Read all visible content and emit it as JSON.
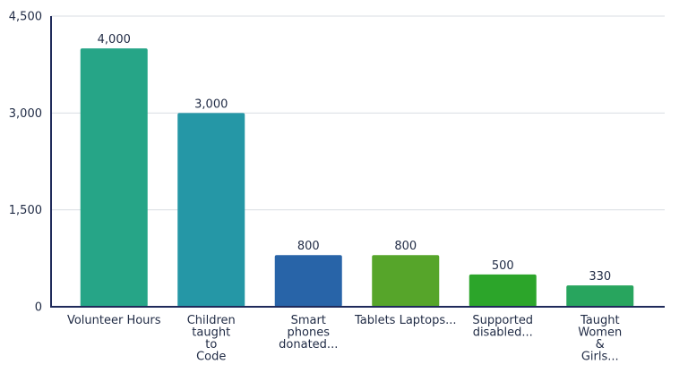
{
  "chart_data": {
    "type": "bar",
    "title": "",
    "xlabel": "",
    "ylabel": "",
    "ylim": [
      0,
      4500
    ],
    "yticks": [
      {
        "value": 0,
        "label": "0"
      },
      {
        "value": 1500,
        "label": "1,500"
      },
      {
        "value": 3000,
        "label": "3,000"
      },
      {
        "value": 4500,
        "label": "4,500"
      }
    ],
    "grid": true,
    "categories": [
      {
        "lines": [
          "Volunteer Hours"
        ]
      },
      {
        "lines": [
          "Children",
          "taught",
          "to",
          "Code"
        ]
      },
      {
        "lines": [
          "Smart",
          "phones",
          "donated..."
        ]
      },
      {
        "lines": [
          "Tablets Laptops..."
        ]
      },
      {
        "lines": [
          "Supported",
          "disabled..."
        ]
      },
      {
        "lines": [
          "Taught",
          "Women",
          "&",
          "Girls..."
        ]
      }
    ],
    "values": [
      4000,
      3000,
      800,
      800,
      500,
      330
    ],
    "value_labels": [
      "4,000",
      "3,000",
      "800",
      "800",
      "500",
      "330"
    ],
    "colors": [
      "#26a587",
      "#2597a6",
      "#2864a8",
      "#56a52a",
      "#2ca52a",
      "#28a55e"
    ]
  }
}
